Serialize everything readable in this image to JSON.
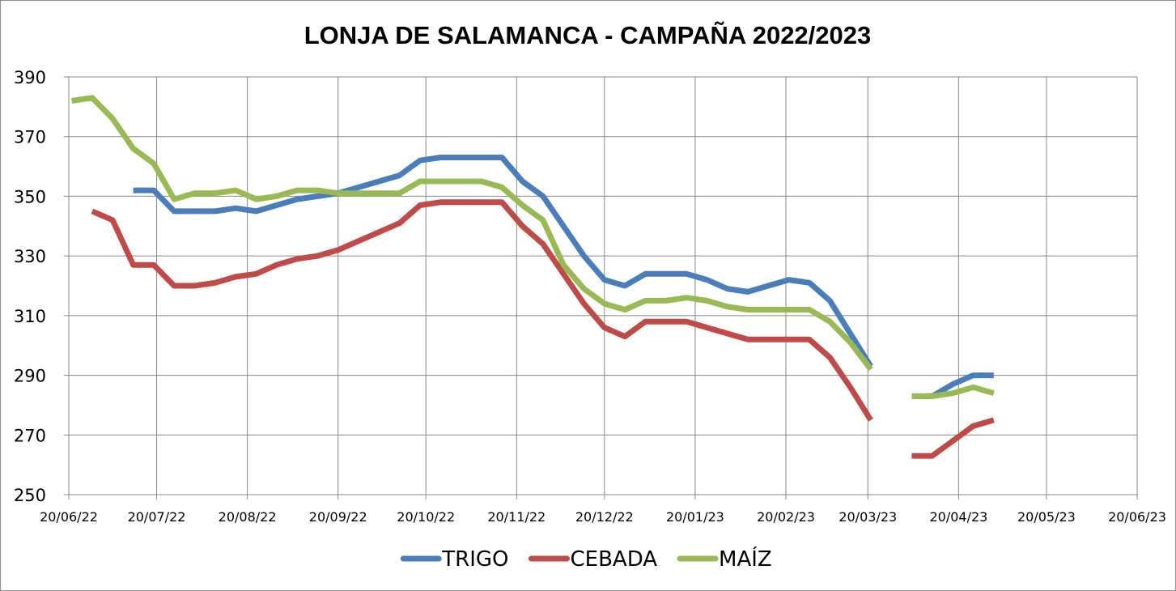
{
  "chart_data": {
    "type": "line",
    "title": "LONJA DE SALAMANCA - CAMPAÑA 2022/2023",
    "xlabel": "",
    "ylabel": "",
    "ylim": [
      250,
      390
    ],
    "yticks": [
      "250",
      "270",
      "290",
      "310",
      "330",
      "350",
      "370",
      "390"
    ],
    "xlim": [
      "2022-06-20",
      "2023-06-20"
    ],
    "xticks": [
      {
        "date": "2022-06-20",
        "label": "20/06/22"
      },
      {
        "date": "2022-07-20",
        "label": "20/07/22"
      },
      {
        "date": "2022-08-20",
        "label": "20/08/22"
      },
      {
        "date": "2022-09-20",
        "label": "20/09/22"
      },
      {
        "date": "2022-10-20",
        "label": "20/10/22"
      },
      {
        "date": "2022-11-20",
        "label": "20/11/22"
      },
      {
        "date": "2022-12-20",
        "label": "20/12/22"
      },
      {
        "date": "2023-01-20",
        "label": "20/01/23"
      },
      {
        "date": "2023-02-20",
        "label": "20/02/23"
      },
      {
        "date": "2023-03-20",
        "label": "20/03/23"
      },
      {
        "date": "2023-04-20",
        "label": "20/04/23"
      },
      {
        "date": "2023-05-20",
        "label": "20/05/23"
      },
      {
        "date": "2023-06-20",
        "label": "20/06/23"
      }
    ],
    "grid": true,
    "legend_position": "bottom",
    "series": [
      {
        "name": "TRIGO",
        "color": "#4a7ebb",
        "points": [
          [
            "2022-07-12",
            352
          ],
          [
            "2022-07-19",
            352
          ],
          [
            "2022-07-26",
            345
          ],
          [
            "2022-08-02",
            345
          ],
          [
            "2022-08-09",
            345
          ],
          [
            "2022-08-16",
            346
          ],
          [
            "2022-08-23",
            345
          ],
          [
            "2022-08-30",
            347
          ],
          [
            "2022-09-06",
            349
          ],
          [
            "2022-09-13",
            350
          ],
          [
            "2022-09-20",
            351
          ],
          [
            "2022-09-27",
            353
          ],
          [
            "2022-10-04",
            355
          ],
          [
            "2022-10-11",
            357
          ],
          [
            "2022-10-18",
            362
          ],
          [
            "2022-10-25",
            363
          ],
          [
            "2022-11-01",
            363
          ],
          [
            "2022-11-08",
            363
          ],
          [
            "2022-11-15",
            363
          ],
          [
            "2022-11-22",
            355
          ],
          [
            "2022-11-29",
            350
          ],
          [
            "2022-12-06",
            340
          ],
          [
            "2022-12-13",
            330
          ],
          [
            "2022-12-20",
            322
          ],
          [
            "2022-12-27",
            320
          ],
          [
            "2023-01-03",
            324
          ],
          [
            "2023-01-10",
            324
          ],
          [
            "2023-01-17",
            324
          ],
          [
            "2023-01-24",
            322
          ],
          [
            "2023-01-31",
            319
          ],
          [
            "2023-02-07",
            318
          ],
          [
            "2023-02-14",
            320
          ],
          [
            "2023-02-21",
            322
          ],
          [
            "2023-02-28",
            321
          ],
          [
            "2023-03-07",
            315
          ],
          [
            "2023-03-14",
            304
          ],
          [
            "2023-03-21",
            293
          ],
          null,
          [
            "2023-04-04",
            283
          ],
          [
            "2023-04-11",
            283
          ],
          [
            "2023-04-18",
            287
          ],
          [
            "2023-04-25",
            290
          ],
          [
            "2023-05-02",
            290
          ]
        ]
      },
      {
        "name": "CEBADA",
        "color": "#be4b48",
        "points": [
          [
            "2022-06-28",
            345
          ],
          [
            "2022-07-05",
            342
          ],
          [
            "2022-07-12",
            327
          ],
          [
            "2022-07-19",
            327
          ],
          [
            "2022-07-26",
            320
          ],
          [
            "2022-08-02",
            320
          ],
          [
            "2022-08-09",
            321
          ],
          [
            "2022-08-16",
            323
          ],
          [
            "2022-08-23",
            324
          ],
          [
            "2022-08-30",
            327
          ],
          [
            "2022-09-06",
            329
          ],
          [
            "2022-09-13",
            330
          ],
          [
            "2022-09-20",
            332
          ],
          [
            "2022-09-27",
            335
          ],
          [
            "2022-10-04",
            338
          ],
          [
            "2022-10-11",
            341
          ],
          [
            "2022-10-18",
            347
          ],
          [
            "2022-10-25",
            348
          ],
          [
            "2022-11-01",
            348
          ],
          [
            "2022-11-08",
            348
          ],
          [
            "2022-11-15",
            348
          ],
          [
            "2022-11-22",
            340
          ],
          [
            "2022-11-29",
            334
          ],
          [
            "2022-12-06",
            324
          ],
          [
            "2022-12-13",
            314
          ],
          [
            "2022-12-20",
            306
          ],
          [
            "2022-12-27",
            303
          ],
          [
            "2023-01-03",
            308
          ],
          [
            "2023-01-10",
            308
          ],
          [
            "2023-01-17",
            308
          ],
          [
            "2023-01-24",
            306
          ],
          [
            "2023-01-31",
            304
          ],
          [
            "2023-02-07",
            302
          ],
          [
            "2023-02-14",
            302
          ],
          [
            "2023-02-21",
            302
          ],
          [
            "2023-02-28",
            302
          ],
          [
            "2023-03-07",
            296
          ],
          [
            "2023-03-14",
            286
          ],
          [
            "2023-03-21",
            275
          ],
          null,
          [
            "2023-04-04",
            263
          ],
          [
            "2023-04-11",
            263
          ],
          [
            "2023-04-18",
            268
          ],
          [
            "2023-04-25",
            273
          ],
          [
            "2023-05-02",
            275
          ]
        ]
      },
      {
        "name": "MAÍZ",
        "color": "#98b954",
        "points": [
          [
            "2022-06-21",
            382
          ],
          [
            "2022-06-28",
            383
          ],
          [
            "2022-07-05",
            376
          ],
          [
            "2022-07-12",
            366
          ],
          [
            "2022-07-19",
            361
          ],
          [
            "2022-07-26",
            349
          ],
          [
            "2022-08-02",
            351
          ],
          [
            "2022-08-09",
            351
          ],
          [
            "2022-08-16",
            352
          ],
          [
            "2022-08-23",
            349
          ],
          [
            "2022-08-30",
            350
          ],
          [
            "2022-09-06",
            352
          ],
          [
            "2022-09-13",
            352
          ],
          [
            "2022-09-20",
            351
          ],
          [
            "2022-09-27",
            351
          ],
          [
            "2022-10-04",
            351
          ],
          [
            "2022-10-11",
            351
          ],
          [
            "2022-10-18",
            355
          ],
          [
            "2022-10-25",
            355
          ],
          [
            "2022-11-01",
            355
          ],
          [
            "2022-11-08",
            355
          ],
          [
            "2022-11-15",
            353
          ],
          [
            "2022-11-22",
            347
          ],
          [
            "2022-11-29",
            342
          ],
          [
            "2022-12-06",
            327
          ],
          [
            "2022-12-13",
            319
          ],
          [
            "2022-12-20",
            314
          ],
          [
            "2022-12-27",
            312
          ],
          [
            "2023-01-03",
            315
          ],
          [
            "2023-01-10",
            315
          ],
          [
            "2023-01-17",
            316
          ],
          [
            "2023-01-24",
            315
          ],
          [
            "2023-01-31",
            313
          ],
          [
            "2023-02-07",
            312
          ],
          [
            "2023-02-14",
            312
          ],
          [
            "2023-02-21",
            312
          ],
          [
            "2023-02-28",
            312
          ],
          [
            "2023-03-07",
            308
          ],
          [
            "2023-03-14",
            301
          ],
          [
            "2023-03-21",
            292
          ],
          null,
          [
            "2023-04-04",
            283
          ],
          [
            "2023-04-11",
            283
          ],
          [
            "2023-04-18",
            284
          ],
          [
            "2023-04-25",
            286
          ],
          [
            "2023-05-02",
            284
          ]
        ]
      }
    ]
  }
}
